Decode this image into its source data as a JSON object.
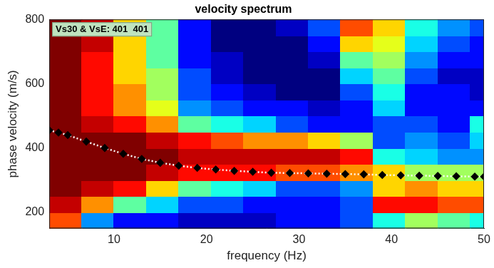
{
  "chart_data": {
    "type": "heatmap",
    "title": "velocity spectrum",
    "annotation": "Vs30 & VsE: 401  401",
    "x_label": "frequency (Hz)",
    "y_label": "phase velocity (m/s)",
    "xlim": [
      3,
      50
    ],
    "ylim": [
      150,
      800
    ],
    "xticks": [
      10,
      20,
      30,
      40,
      50
    ],
    "yticks": [
      200,
      400,
      600,
      800
    ],
    "grid": false,
    "x": [
      3,
      4,
      5,
      7,
      9,
      11,
      13,
      15,
      17,
      19,
      21,
      23,
      25,
      27,
      29,
      31,
      33,
      35,
      37,
      39,
      41,
      43,
      45,
      47,
      49,
      50
    ],
    "values": [
      455,
      448,
      440,
      420,
      400,
      382,
      366,
      354,
      345,
      338,
      333,
      329,
      326,
      323,
      322,
      321,
      320,
      319,
      318,
      316,
      315,
      314,
      313,
      312,
      311,
      311
    ],
    "color": "#000000",
    "marker": "diamond",
    "line_style": "dotted",
    "heatmap": {
      "x": [
        4.75,
        8.25,
        11.75,
        15.25,
        18.75,
        22.25,
        25.75,
        29.25,
        32.75,
        36.25,
        39.75,
        43.25,
        46.75,
        50.25
      ],
      "y": [
        175,
        225,
        275,
        325,
        375,
        425,
        475,
        525,
        575,
        625,
        675,
        725,
        775
      ],
      "z": [
        [
          0.8,
          0.4,
          0.3,
          0.3,
          0.25,
          0.25,
          0.25,
          0.3,
          0.3,
          0.35,
          0.5,
          0.6,
          0.55,
          0.5
        ],
        [
          0.9,
          0.75,
          0.55,
          0.45,
          0.35,
          0.35,
          0.3,
          0.3,
          0.3,
          0.35,
          0.85,
          0.85,
          0.8,
          0.8
        ],
        [
          0.95,
          0.9,
          0.85,
          0.7,
          0.55,
          0.5,
          0.45,
          0.35,
          0.35,
          0.4,
          0.7,
          0.75,
          0.7,
          0.7
        ],
        [
          0.95,
          0.95,
          0.95,
          0.9,
          0.85,
          0.85,
          0.85,
          0.8,
          0.8,
          0.75,
          0.7,
          0.6,
          0.6,
          0.6
        ],
        [
          0.95,
          0.95,
          0.95,
          0.95,
          0.9,
          0.9,
          0.9,
          0.9,
          0.9,
          0.85,
          0.5,
          0.45,
          0.4,
          0.4
        ],
        [
          0.95,
          0.95,
          0.95,
          0.9,
          0.85,
          0.8,
          0.75,
          0.75,
          0.7,
          0.6,
          0.35,
          0.4,
          0.35,
          0.45
        ],
        [
          0.95,
          0.9,
          0.85,
          0.75,
          0.55,
          0.5,
          0.45,
          0.35,
          0.3,
          0.3,
          0.35,
          0.35,
          0.3,
          0.5
        ],
        [
          0.95,
          0.85,
          0.75,
          0.65,
          0.4,
          0.35,
          0.3,
          0.3,
          0.25,
          0.3,
          0.45,
          0.3,
          0.3,
          0.3
        ],
        [
          0.95,
          0.85,
          0.75,
          0.6,
          0.35,
          0.3,
          0.25,
          0.2,
          0.2,
          0.35,
          0.5,
          0.3,
          0.3,
          0.25
        ],
        [
          0.95,
          0.85,
          0.7,
          0.6,
          0.35,
          0.25,
          0.2,
          0.2,
          0.2,
          0.45,
          0.55,
          0.35,
          0.25,
          0.25
        ],
        [
          0.95,
          0.85,
          0.7,
          0.55,
          0.3,
          0.25,
          0.2,
          0.2,
          0.25,
          0.55,
          0.6,
          0.4,
          0.3,
          0.3
        ],
        [
          0.95,
          0.9,
          0.7,
          0.55,
          0.3,
          0.2,
          0.2,
          0.2,
          0.3,
          0.7,
          0.65,
          0.45,
          0.35,
          0.3
        ],
        [
          0.95,
          0.9,
          0.7,
          0.55,
          0.3,
          0.2,
          0.2,
          0.25,
          0.35,
          0.8,
          0.7,
          0.5,
          0.4,
          0.35
        ]
      ]
    }
  }
}
